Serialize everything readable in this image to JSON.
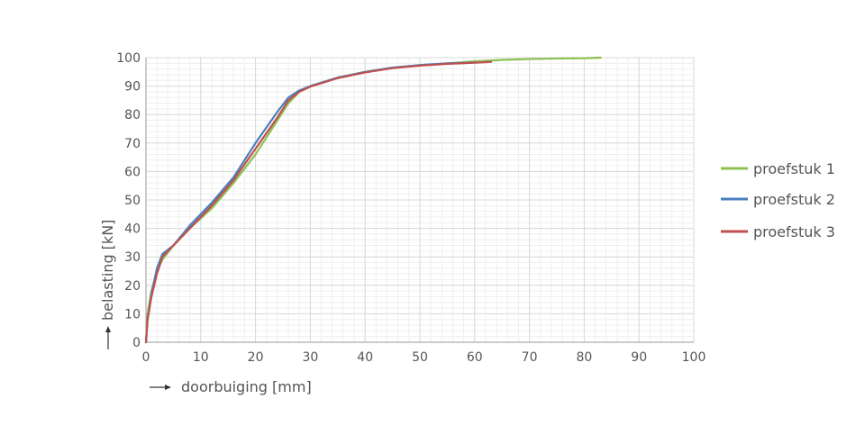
{
  "chart_data": {
    "type": "line",
    "xlabel": "doorbuiging [mm]",
    "ylabel": "belasting [kN]",
    "xlim": [
      0,
      100
    ],
    "ylim": [
      0,
      100
    ],
    "x_major_step": 10,
    "y_major_step": 10,
    "x_minor_step": 2,
    "y_minor_step": 2,
    "grid": true,
    "legend_position": "right",
    "xticks": [
      "0",
      "10",
      "20",
      "30",
      "40",
      "50",
      "60",
      "70",
      "80",
      "90",
      "100"
    ],
    "yticks": [
      "0",
      "10",
      "20",
      "30",
      "40",
      "50",
      "60",
      "70",
      "80",
      "90",
      "100"
    ],
    "series": [
      {
        "name": "proefstuk 1",
        "color": "#8cc152",
        "points": [
          [
            0,
            0
          ],
          [
            0.3,
            10
          ],
          [
            1,
            18
          ],
          [
            2,
            25
          ],
          [
            3,
            29
          ],
          [
            5,
            34
          ],
          [
            8,
            40
          ],
          [
            12,
            47
          ],
          [
            16,
            56
          ],
          [
            20,
            66
          ],
          [
            24,
            78
          ],
          [
            26,
            84
          ],
          [
            28,
            88
          ],
          [
            30,
            90
          ],
          [
            35,
            93
          ],
          [
            40,
            95
          ],
          [
            45,
            96.5
          ],
          [
            50,
            97.3
          ],
          [
            55,
            98
          ],
          [
            60,
            98.7
          ],
          [
            65,
            99.2
          ],
          [
            70,
            99.5
          ],
          [
            75,
            99.7
          ],
          [
            80,
            99.8
          ],
          [
            83,
            100
          ]
        ]
      },
      {
        "name": "proefstuk 2",
        "color": "#4a7fc1",
        "points": [
          [
            0,
            0
          ],
          [
            0.3,
            8
          ],
          [
            1,
            17
          ],
          [
            2,
            26
          ],
          [
            3,
            31
          ],
          [
            5,
            34
          ],
          [
            8,
            41
          ],
          [
            12,
            49
          ],
          [
            16,
            58
          ],
          [
            20,
            70
          ],
          [
            24,
            81
          ],
          [
            26,
            86
          ],
          [
            28,
            88.5
          ],
          [
            30,
            90
          ],
          [
            35,
            93
          ],
          [
            40,
            95
          ],
          [
            45,
            96.5
          ],
          [
            50,
            97.4
          ],
          [
            55,
            98
          ],
          [
            60,
            98.3
          ]
        ]
      },
      {
        "name": "proefstuk 3",
        "color": "#c0504d",
        "points": [
          [
            0,
            0
          ],
          [
            0.3,
            8
          ],
          [
            1,
            16
          ],
          [
            2,
            24
          ],
          [
            3,
            30
          ],
          [
            5,
            34
          ],
          [
            8,
            40
          ],
          [
            12,
            48
          ],
          [
            16,
            57
          ],
          [
            20,
            68
          ],
          [
            24,
            79
          ],
          [
            26,
            85
          ],
          [
            28,
            88
          ],
          [
            30,
            89.8
          ],
          [
            35,
            92.8
          ],
          [
            40,
            94.8
          ],
          [
            45,
            96.3
          ],
          [
            50,
            97.2
          ],
          [
            55,
            97.8
          ],
          [
            60,
            98.2
          ],
          [
            63,
            98.5
          ]
        ]
      }
    ]
  }
}
